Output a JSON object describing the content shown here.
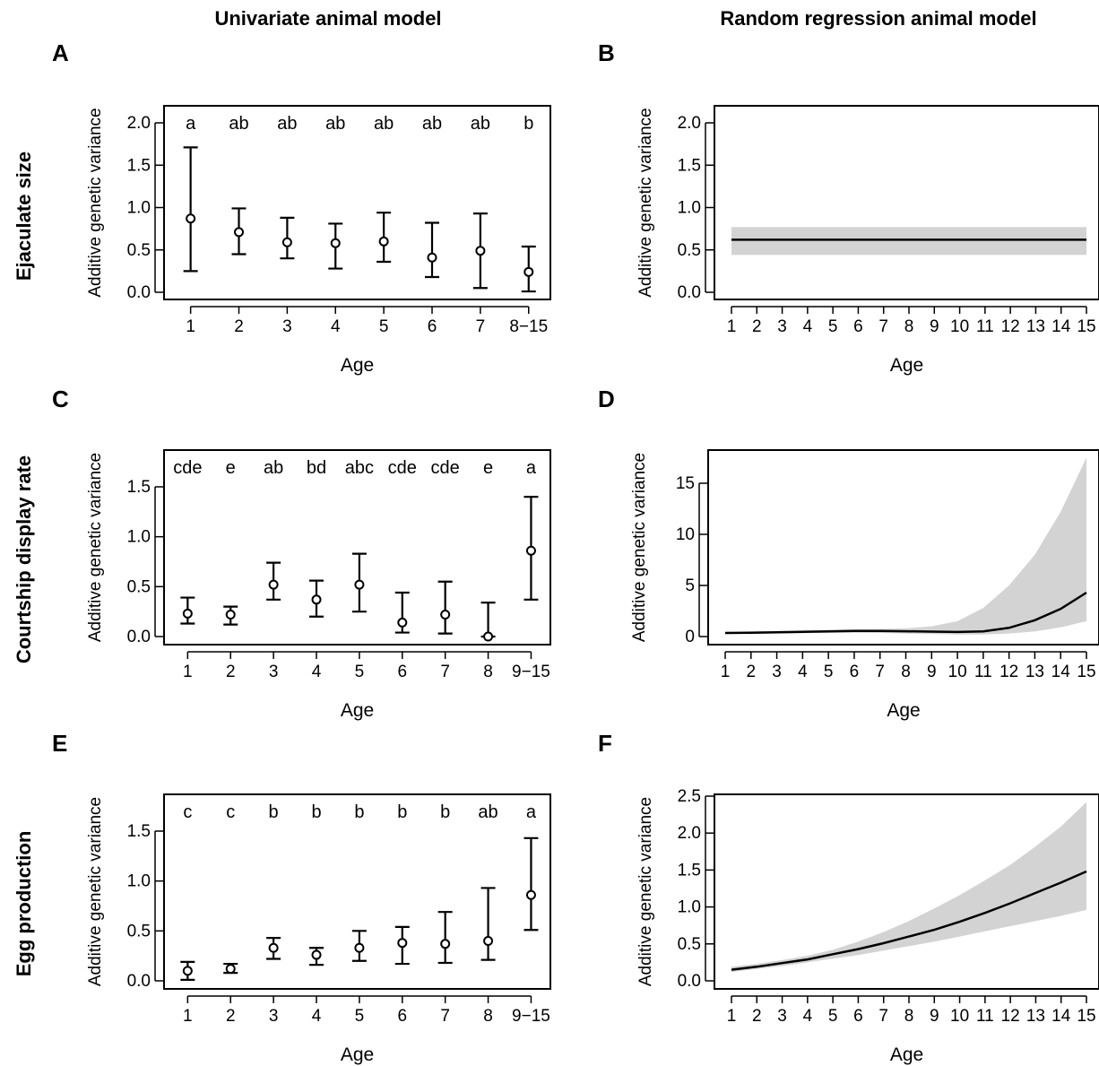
{
  "column_titles": [
    "Univariate animal model",
    "Random regression animal model"
  ],
  "row_titles": [
    "Ejaculate size",
    "Courtship display rate",
    "Egg production"
  ],
  "chart_data": [
    {
      "panel": "A",
      "type": "scatter",
      "xlabel": "Age",
      "ylabel": "Additive genetic variance",
      "categories": [
        "1",
        "2",
        "3",
        "4",
        "5",
        "6",
        "7",
        "8−15"
      ],
      "values": [
        0.87,
        0.71,
        0.59,
        0.58,
        0.6,
        0.41,
        0.49,
        0.24
      ],
      "lower": [
        0.25,
        0.45,
        0.4,
        0.28,
        0.36,
        0.18,
        0.05,
        0.01
      ],
      "upper": [
        1.71,
        0.99,
        0.88,
        0.81,
        0.94,
        0.82,
        0.93,
        0.54
      ],
      "letters": [
        "a",
        "ab",
        "ab",
        "ab",
        "ab",
        "ab",
        "ab",
        "b"
      ],
      "ylim": [
        0,
        2.0
      ],
      "yticks": [
        0.0,
        0.5,
        1.0,
        1.5,
        2.0
      ],
      "ytick_labels": [
        "0.0",
        "0.5",
        "1.0",
        "1.5",
        "2.0"
      ]
    },
    {
      "panel": "B",
      "type": "area",
      "xlabel": "Age",
      "ylabel": "Additive genetic variance",
      "x": [
        1,
        2,
        3,
        4,
        5,
        6,
        7,
        8,
        9,
        10,
        11,
        12,
        13,
        14,
        15
      ],
      "y": [
        0.62,
        0.62,
        0.62,
        0.62,
        0.62,
        0.62,
        0.62,
        0.62,
        0.62,
        0.62,
        0.62,
        0.62,
        0.62,
        0.62,
        0.62
      ],
      "lower": [
        0.44,
        0.44,
        0.44,
        0.44,
        0.44,
        0.44,
        0.44,
        0.44,
        0.44,
        0.44,
        0.44,
        0.44,
        0.44,
        0.44,
        0.44
      ],
      "upper": [
        0.77,
        0.77,
        0.77,
        0.77,
        0.77,
        0.77,
        0.77,
        0.77,
        0.77,
        0.77,
        0.77,
        0.77,
        0.77,
        0.77,
        0.77
      ],
      "xticks": [
        "1",
        "2",
        "3",
        "4",
        "5",
        "6",
        "7",
        "8",
        "9",
        "10",
        "11",
        "12",
        "13",
        "14",
        "15"
      ],
      "ylim": [
        0,
        2.0
      ],
      "yticks": [
        0.0,
        0.5,
        1.0,
        1.5,
        2.0
      ],
      "ytick_labels": [
        "0.0",
        "0.5",
        "1.0",
        "1.5",
        "2.0"
      ]
    },
    {
      "panel": "C",
      "type": "scatter",
      "xlabel": "Age",
      "ylabel": "Additive genetic variance",
      "categories": [
        "1",
        "2",
        "3",
        "4",
        "5",
        "6",
        "7",
        "8",
        "9−15"
      ],
      "values": [
        0.23,
        0.22,
        0.52,
        0.37,
        0.52,
        0.14,
        0.22,
        0.0,
        0.86
      ],
      "lower": [
        0.13,
        0.12,
        0.37,
        0.2,
        0.25,
        0.04,
        0.03,
        0.0,
        0.37
      ],
      "upper": [
        0.39,
        0.3,
        0.74,
        0.56,
        0.83,
        0.44,
        0.55,
        0.34,
        1.4
      ],
      "letters": [
        "cde",
        "e",
        "ab",
        "bd",
        "abc",
        "cde",
        "cde",
        "e",
        "a"
      ],
      "ylim": [
        0,
        1.5
      ],
      "yticks": [
        0.0,
        0.5,
        1.0,
        1.5
      ],
      "ytick_labels": [
        "0.0",
        "0.5",
        "1.0",
        "1.5"
      ]
    },
    {
      "panel": "D",
      "type": "area",
      "xlabel": "Age",
      "ylabel": "Additive genetic variance",
      "x": [
        1,
        2,
        3,
        4,
        5,
        6,
        7,
        8,
        9,
        10,
        11,
        12,
        13,
        14,
        15
      ],
      "y": [
        0.35,
        0.38,
        0.42,
        0.46,
        0.5,
        0.55,
        0.55,
        0.52,
        0.48,
        0.45,
        0.5,
        0.85,
        1.6,
        2.7,
        4.3
      ],
      "lower": [
        0.25,
        0.28,
        0.3,
        0.33,
        0.36,
        0.38,
        0.35,
        0.3,
        0.25,
        0.2,
        0.2,
        0.3,
        0.5,
        0.9,
        1.5
      ],
      "upper": [
        0.45,
        0.5,
        0.55,
        0.6,
        0.65,
        0.72,
        0.75,
        0.8,
        1.0,
        1.5,
        2.8,
        5.0,
        8.0,
        12.2,
        17.5
      ],
      "xticks": [
        "1",
        "2",
        "3",
        "4",
        "5",
        "6",
        "7",
        "8",
        "9",
        "10",
        "11",
        "12",
        "13",
        "14",
        "15"
      ],
      "ylim": [
        0,
        17
      ],
      "yticks": [
        0,
        5,
        10,
        15
      ],
      "ytick_labels": [
        "0",
        "5",
        "10",
        "15"
      ]
    },
    {
      "panel": "E",
      "type": "scatter",
      "xlabel": "Age",
      "ylabel": "Additive genetic variance",
      "categories": [
        "1",
        "2",
        "3",
        "4",
        "5",
        "6",
        "7",
        "8",
        "9−15"
      ],
      "values": [
        0.1,
        0.12,
        0.33,
        0.26,
        0.33,
        0.38,
        0.37,
        0.4,
        0.86
      ],
      "lower": [
        0.01,
        0.08,
        0.22,
        0.16,
        0.2,
        0.17,
        0.18,
        0.21,
        0.51
      ],
      "upper": [
        0.19,
        0.17,
        0.43,
        0.33,
        0.5,
        0.54,
        0.69,
        0.93,
        1.43
      ],
      "letters": [
        "c",
        "c",
        "b",
        "b",
        "b",
        "b",
        "b",
        "ab",
        "a"
      ],
      "ylim": [
        0,
        1.5
      ],
      "yticks": [
        0.0,
        0.5,
        1.0,
        1.5
      ],
      "ytick_labels": [
        "0.0",
        "0.5",
        "1.0",
        "1.5"
      ]
    },
    {
      "panel": "F",
      "type": "area",
      "xlabel": "Age",
      "ylabel": "Additive genetic variance",
      "x": [
        1,
        2,
        3,
        4,
        5,
        6,
        7,
        8,
        9,
        10,
        11,
        12,
        13,
        14,
        15
      ],
      "y": [
        0.15,
        0.19,
        0.24,
        0.29,
        0.36,
        0.43,
        0.51,
        0.6,
        0.69,
        0.8,
        0.92,
        1.05,
        1.19,
        1.33,
        1.48
      ],
      "lower": [
        0.12,
        0.16,
        0.2,
        0.25,
        0.3,
        0.35,
        0.41,
        0.47,
        0.53,
        0.6,
        0.67,
        0.74,
        0.81,
        0.88,
        0.96
      ],
      "upper": [
        0.19,
        0.23,
        0.28,
        0.34,
        0.42,
        0.53,
        0.66,
        0.81,
        0.98,
        1.16,
        1.36,
        1.57,
        1.82,
        2.09,
        2.42
      ],
      "xticks": [
        "1",
        "2",
        "3",
        "4",
        "5",
        "6",
        "7",
        "8",
        "9",
        "10",
        "11",
        "12",
        "13",
        "14",
        "15"
      ],
      "ylim": [
        0,
        2.5
      ],
      "yticks": [
        0.0,
        0.5,
        1.0,
        1.5,
        2.0,
        2.5
      ],
      "ytick_labels": [
        "0.0",
        "0.5",
        "1.0",
        "1.5",
        "2.0",
        "2.5"
      ]
    }
  ]
}
